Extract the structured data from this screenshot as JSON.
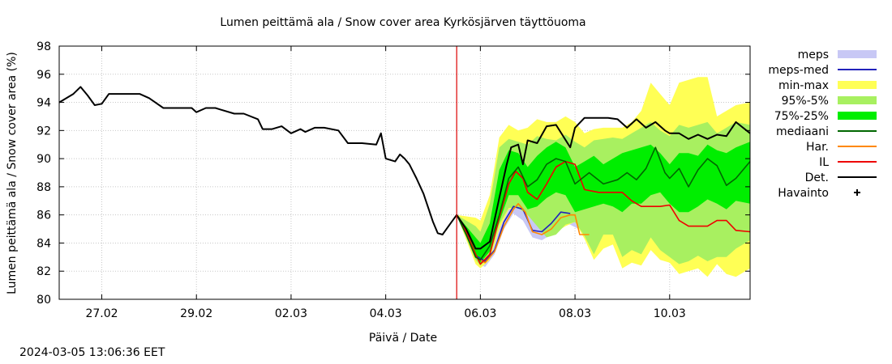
{
  "chart_data": {
    "type": "line",
    "title": "Lumen peittämä ala / Snow cover area Kyrkösjärven täyttöuoma",
    "xlabel": "Päivä / Date",
    "ylabel": "Lumen peittämä ala / Snow cover area (%)",
    "ylim": [
      80,
      98
    ],
    "yticks": [
      80,
      82,
      84,
      86,
      88,
      90,
      92,
      94,
      96,
      98
    ],
    "xlim_days": [
      26.1,
      40.7
    ],
    "xticks": [
      {
        "day": 27,
        "label": "27.02"
      },
      {
        "day": 29,
        "label": "29.02"
      },
      {
        "day": 31,
        "label": "02.03"
      },
      {
        "day": 33,
        "label": "04.03"
      },
      {
        "day": 35,
        "label": "06.03"
      },
      {
        "day": 37,
        "label": "08.03"
      },
      {
        "day": 39,
        "label": "10.03"
      }
    ],
    "forecast_start_day": 34.5,
    "grid": true,
    "legend_position": "right",
    "legend": [
      {
        "label": "meps",
        "kind": "band",
        "color": "#c8c8f5"
      },
      {
        "label": "meps-med",
        "kind": "line",
        "color": "#2222bb"
      },
      {
        "label": "min-max",
        "kind": "band",
        "color": "#ffff55"
      },
      {
        "label": "95%-5%",
        "kind": "band",
        "color": "#a8f060"
      },
      {
        "label": "75%-25%",
        "kind": "band",
        "color": "#00ee00"
      },
      {
        "label": "mediaani",
        "kind": "line",
        "color": "#006600"
      },
      {
        "label": "Har.",
        "kind": "line",
        "color": "#ff8800"
      },
      {
        "label": "IL",
        "kind": "line",
        "color": "#ee0000"
      },
      {
        "label": "Det.",
        "kind": "line",
        "color": "#000000"
      },
      {
        "label": "Havainto",
        "kind": "marker",
        "color": "#000000"
      }
    ],
    "series": [
      {
        "name": "Det.",
        "x": [
          26.1,
          26.4,
          26.55,
          26.7,
          26.85,
          27.0,
          27.15,
          27.3,
          27.5,
          27.8,
          28.0,
          28.3,
          28.6,
          28.9,
          29.0,
          29.2,
          29.4,
          29.5,
          29.8,
          30.0,
          30.3,
          30.4,
          30.6,
          30.8,
          31.0,
          31.2,
          31.3,
          31.5,
          31.7,
          32.0,
          32.2,
          32.5,
          32.8,
          32.9,
          33.0,
          33.2,
          33.3,
          33.4,
          33.5,
          33.65,
          33.8,
          34.0,
          34.1,
          34.2,
          34.35,
          34.5,
          34.7,
          34.9,
          35.0,
          35.2,
          35.4,
          35.55,
          35.65,
          35.8,
          35.9,
          36.0,
          36.2,
          36.4,
          36.6,
          36.9,
          37.0,
          37.2,
          37.5,
          37.7,
          37.9,
          38.1,
          38.3,
          38.5,
          38.7,
          38.9,
          39.0,
          39.2,
          39.4,
          39.6,
          39.8,
          40.0,
          40.2,
          40.4,
          40.7
        ],
        "y": [
          94.0,
          94.6,
          95.1,
          94.5,
          93.8,
          93.9,
          94.6,
          94.6,
          94.6,
          94.6,
          94.3,
          93.6,
          93.6,
          93.6,
          93.3,
          93.6,
          93.6,
          93.5,
          93.2,
          93.2,
          92.8,
          92.1,
          92.1,
          92.3,
          91.8,
          92.1,
          91.9,
          92.2,
          92.2,
          92.0,
          91.1,
          91.1,
          91.0,
          91.8,
          90.0,
          89.8,
          90.3,
          90.0,
          89.6,
          88.6,
          87.5,
          85.5,
          84.7,
          84.6,
          85.3,
          86.0,
          85.0,
          83.6,
          83.6,
          84.1,
          87.2,
          89.5,
          90.8,
          91.0,
          89.6,
          91.3,
          91.1,
          92.3,
          92.4,
          90.8,
          92.2,
          92.9,
          92.9,
          92.9,
          92.8,
          92.2,
          92.8,
          92.2,
          92.6,
          92.0,
          91.8,
          91.8,
          91.4,
          91.7,
          91.4,
          91.7,
          91.6,
          92.6,
          91.8
        ]
      },
      {
        "name": "mediaani",
        "x": [
          34.5,
          34.7,
          34.9,
          35.0,
          35.2,
          35.4,
          35.6,
          35.8,
          36.0,
          36.2,
          36.4,
          36.6,
          36.8,
          37.0,
          37.3,
          37.6,
          37.9,
          38.1,
          38.3,
          38.5,
          38.7,
          38.9,
          39.0,
          39.2,
          39.4,
          39.6,
          39.8,
          40.0,
          40.2,
          40.4,
          40.7
        ],
        "y": [
          86.0,
          84.6,
          83.0,
          82.8,
          83.8,
          86.0,
          88.6,
          89.4,
          88.0,
          88.5,
          89.6,
          90.0,
          89.8,
          88.2,
          89.0,
          88.2,
          88.5,
          89.0,
          88.5,
          89.3,
          90.8,
          89.0,
          88.6,
          89.3,
          88.0,
          89.2,
          90.0,
          89.5,
          88.1,
          88.6,
          89.8
        ]
      },
      {
        "name": "IL",
        "x": [
          34.5,
          34.7,
          34.9,
          35.0,
          35.2,
          35.4,
          35.6,
          35.75,
          35.9,
          36.0,
          36.2,
          36.4,
          36.6,
          36.8,
          37.0,
          37.2,
          37.5,
          37.8,
          38.0,
          38.2,
          38.4,
          38.6,
          38.8,
          39.0,
          39.2,
          39.4,
          39.6,
          39.8,
          40.0,
          40.2,
          40.4,
          40.7
        ],
        "y": [
          86.0,
          84.8,
          83.2,
          82.5,
          83.2,
          85.8,
          88.2,
          89.1,
          88.6,
          87.6,
          87.1,
          88.2,
          89.4,
          89.8,
          89.6,
          87.8,
          87.6,
          87.6,
          87.6,
          87.0,
          86.6,
          86.6,
          86.6,
          86.7,
          85.6,
          85.2,
          85.2,
          85.2,
          85.6,
          85.6,
          84.9,
          84.8
        ]
      },
      {
        "name": "Har.",
        "x": [
          34.5,
          34.7,
          34.9,
          35.1,
          35.3,
          35.5,
          35.7,
          35.8,
          35.95,
          36.1,
          36.3,
          36.5,
          36.7,
          36.9,
          37.0,
          37.1,
          37.3
        ],
        "y": [
          86.0,
          84.8,
          83.0,
          82.6,
          83.4,
          85.2,
          86.4,
          86.8,
          86.2,
          84.8,
          84.6,
          85.0,
          85.8,
          86.0,
          86.0,
          84.6,
          84.6
        ]
      },
      {
        "name": "meps-med",
        "x": [
          34.5,
          34.7,
          34.9,
          35.1,
          35.3,
          35.5,
          35.7,
          35.9,
          36.1,
          36.3,
          36.5,
          36.7,
          36.9
        ],
        "y": [
          86.0,
          84.8,
          83.1,
          82.7,
          83.5,
          85.5,
          86.6,
          86.4,
          84.9,
          84.8,
          85.4,
          86.2,
          86.1
        ]
      }
    ],
    "bands": [
      {
        "name": "min-max",
        "x": [
          34.5,
          34.9,
          35.0,
          35.2,
          35.4,
          35.6,
          35.8,
          36.0,
          36.2,
          36.4,
          36.6,
          36.8,
          37.0,
          37.2,
          37.4,
          37.6,
          37.8,
          38.0,
          38.2,
          38.4,
          38.6,
          38.8,
          39.0,
          39.2,
          39.4,
          39.6,
          39.8,
          40.0,
          40.2,
          40.4,
          40.7
        ],
        "lo": [
          86.0,
          82.5,
          82.2,
          82.8,
          85.0,
          86.4,
          86.5,
          86.0,
          85.4,
          84.6,
          84.8,
          85.2,
          85.5,
          84.3,
          82.8,
          83.6,
          83.9,
          82.2,
          82.6,
          82.4,
          83.5,
          82.8,
          82.6,
          81.8,
          82.0,
          82.2,
          81.6,
          82.5,
          81.8,
          81.6,
          82.2
        ],
        "hi": [
          86.0,
          85.8,
          85.6,
          87.4,
          91.5,
          92.4,
          92.0,
          92.2,
          92.8,
          92.6,
          92.6,
          93.0,
          92.6,
          91.8,
          92.1,
          92.2,
          92.2,
          92.2,
          92.6,
          93.4,
          95.4,
          94.6,
          93.8,
          95.4,
          95.6,
          95.8,
          95.8,
          93.0,
          93.4,
          93.8,
          94.0
        ]
      },
      {
        "name": "95%-5%",
        "x": [
          34.5,
          34.9,
          35.0,
          35.2,
          35.4,
          35.6,
          35.8,
          36.0,
          36.2,
          36.4,
          36.6,
          36.8,
          37.0,
          37.2,
          37.4,
          37.6,
          37.8,
          38.0,
          38.2,
          38.4,
          38.6,
          38.8,
          39.0,
          39.2,
          39.4,
          39.6,
          39.8,
          40.0,
          40.2,
          40.4,
          40.7
        ],
        "lo": [
          86.0,
          82.8,
          82.4,
          83.0,
          85.3,
          86.5,
          86.5,
          86.0,
          85.2,
          84.4,
          84.6,
          85.3,
          85.5,
          84.5,
          83.2,
          84.6,
          84.6,
          83.0,
          83.5,
          83.2,
          84.4,
          83.5,
          83.0,
          82.5,
          82.7,
          83.1,
          82.7,
          83.0,
          83.0,
          83.6,
          84.2
        ],
        "hi": [
          86.0,
          85.2,
          84.8,
          86.8,
          90.8,
          91.4,
          91.2,
          91.0,
          91.6,
          91.4,
          91.3,
          91.7,
          91.2,
          90.8,
          91.3,
          91.4,
          91.5,
          91.4,
          91.8,
          92.2,
          92.6,
          92.0,
          91.6,
          92.4,
          92.2,
          92.4,
          92.6,
          91.8,
          92.2,
          92.6,
          92.4
        ]
      },
      {
        "name": "75%-25%",
        "x": [
          34.5,
          34.9,
          35.0,
          35.2,
          35.4,
          35.6,
          35.8,
          36.0,
          36.2,
          36.4,
          36.6,
          36.8,
          37.0,
          37.2,
          37.4,
          37.6,
          37.8,
          38.0,
          38.2,
          38.4,
          38.6,
          38.8,
          39.0,
          39.2,
          39.4,
          39.6,
          39.8,
          40.0,
          40.2,
          40.4,
          40.7
        ],
        "lo": [
          86.0,
          83.0,
          82.6,
          83.4,
          85.5,
          87.4,
          87.4,
          86.4,
          86.6,
          87.2,
          87.6,
          87.4,
          86.2,
          86.4,
          86.6,
          86.8,
          86.6,
          86.2,
          86.8,
          86.8,
          87.4,
          87.6,
          86.8,
          86.2,
          86.2,
          86.6,
          87.1,
          86.8,
          86.4,
          87.0,
          86.8
        ],
        "hi": [
          86.0,
          84.4,
          84.0,
          85.4,
          89.2,
          90.6,
          90.4,
          89.4,
          90.2,
          90.8,
          91.2,
          90.8,
          89.4,
          89.8,
          90.2,
          89.6,
          90.0,
          90.4,
          90.6,
          90.8,
          91.0,
          90.4,
          89.6,
          90.4,
          90.4,
          90.2,
          91.0,
          90.6,
          90.4,
          90.8,
          91.2
        ]
      },
      {
        "name": "meps",
        "x": [
          34.5,
          34.9,
          35.1,
          35.3,
          35.5,
          35.7,
          35.9,
          36.1,
          36.3,
          36.5,
          36.7,
          36.9,
          37.3,
          37.6,
          37.9,
          38.0
        ],
        "lo": [
          86.0,
          82.6,
          82.3,
          83.2,
          85.0,
          86.1,
          85.6,
          84.4,
          84.2,
          84.6,
          85.4,
          85.3,
          84.6,
          84.4,
          84.5,
          84.5
        ],
        "hi": [
          86.0,
          84.0,
          83.4,
          84.4,
          86.6,
          87.2,
          86.9,
          85.9,
          85.6,
          86.1,
          86.7,
          86.5,
          85.7,
          85.4,
          85.4,
          85.2
        ]
      }
    ]
  },
  "timestamp": "2024-03-05 13:06:36 EET"
}
